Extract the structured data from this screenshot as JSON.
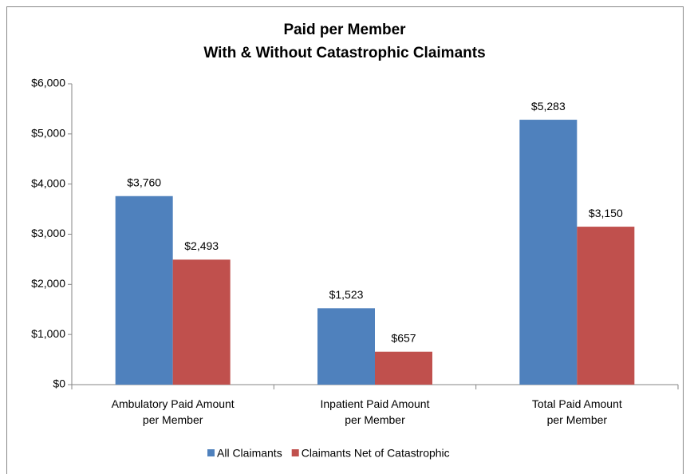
{
  "chart_data": {
    "type": "bar",
    "title": "Paid per Member",
    "subtitle": "With & Without Catastrophic Claimants",
    "categories": [
      "Ambulatory Paid Amount\nper Member",
      "Inpatient Paid Amount\nper Member",
      "Total Paid Amount\nper Member"
    ],
    "series": [
      {
        "name": "All Claimants",
        "color": "#4f81bd",
        "values": [
          3760,
          1523,
          5283
        ],
        "value_labels": [
          "$3,760",
          "$1,523",
          "$5,283"
        ]
      },
      {
        "name": "Claimants Net of Catastrophic",
        "color": "#c0504d",
        "values": [
          2493,
          657,
          3150
        ],
        "value_labels": [
          "$2,493",
          "$657",
          "$3,150"
        ]
      }
    ],
    "ylim": [
      0,
      6000
    ],
    "yticks": [
      {
        "value": 0,
        "label": "$0"
      },
      {
        "value": 1000,
        "label": "$1,000"
      },
      {
        "value": 2000,
        "label": "$2,000"
      },
      {
        "value": 3000,
        "label": "$3,000"
      },
      {
        "value": 4000,
        "label": "$4,000"
      },
      {
        "value": 5000,
        "label": "$5,000"
      },
      {
        "value": 6000,
        "label": "$6,000"
      }
    ],
    "grid": false,
    "legend": "bottom"
  }
}
